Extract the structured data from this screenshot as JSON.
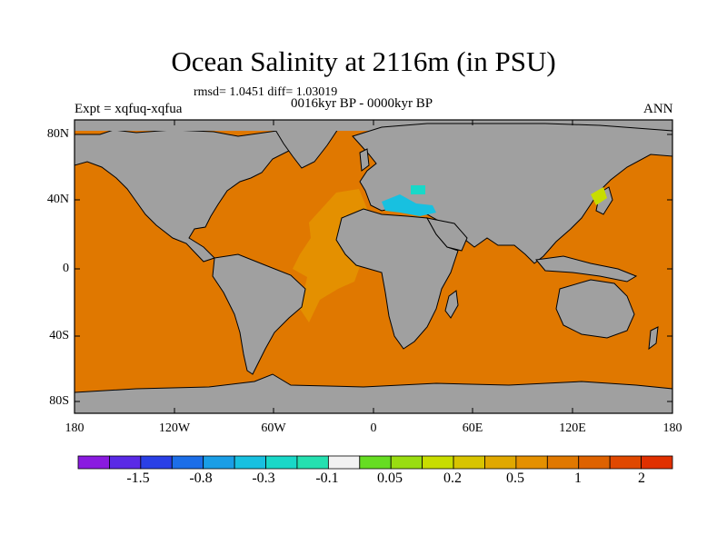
{
  "title": "Ocean Salinity at 2116m (in PSU)",
  "stats": "rmsd= 1.0451 diff= 1.03019",
  "period": "0016kyr BP - 0000kyr BP",
  "experiment": "Expt = xqfuq-xqfua",
  "season": "ANN",
  "lat_labels": [
    "80N",
    "40N",
    "0",
    "40S",
    "80S"
  ],
  "lon_labels": [
    "180",
    "120W",
    "60W",
    "0",
    "60E",
    "120E",
    "180"
  ],
  "colorbar": {
    "labels": [
      "-1.5",
      "-0.8",
      "-0.3",
      "-0.1",
      "0.05",
      "0.2",
      "0.5",
      "1",
      "2"
    ],
    "colors": [
      "#8a1ae0",
      "#5a2ae6",
      "#2a3fe6",
      "#1c6ee8",
      "#1a9ee6",
      "#18c0e0",
      "#19d8c8",
      "#25e0b0",
      "#f2f2f2",
      "#66dd22",
      "#99dd11",
      "#c8dd00",
      "#d8c400",
      "#e0a800",
      "#e49000",
      "#e07800",
      "#de6200",
      "#e04800",
      "#e03000"
    ]
  },
  "colors": {
    "ocean": "#e07800",
    "atlantic": "#e49000",
    "land": "#a0a0a0",
    "med": "#18c0e0",
    "japan_sea": "#c8dd00"
  }
}
